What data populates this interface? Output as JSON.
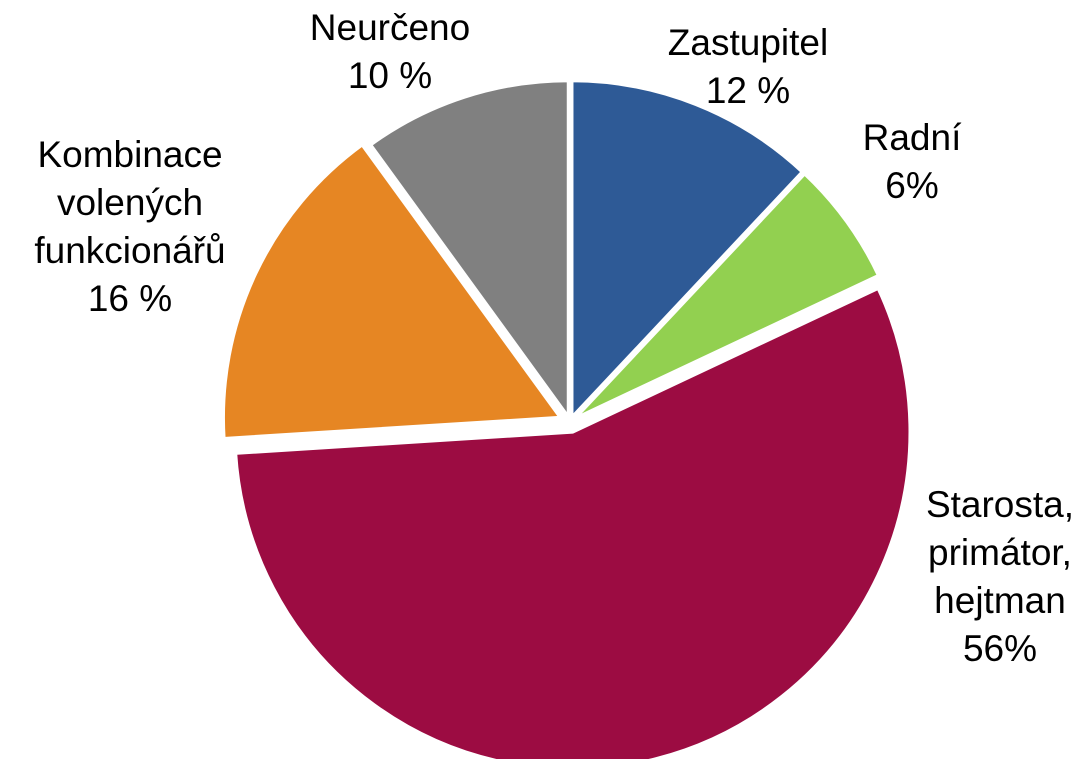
{
  "chart_data": {
    "type": "pie",
    "categories": [
      "Zastupitel",
      "Radní",
      "Starosta, primátor, hejtman",
      "Kombinace volených funkcionářů",
      "Neurčeno"
    ],
    "values": [
      12,
      6,
      56,
      16,
      10
    ],
    "value_labels": [
      "12 %",
      "6%",
      "56%",
      "16 %",
      "10 %"
    ],
    "colors": [
      "#2e5a96",
      "#92d050",
      "#9c0c42",
      "#e68623",
      "#808080"
    ]
  }
}
